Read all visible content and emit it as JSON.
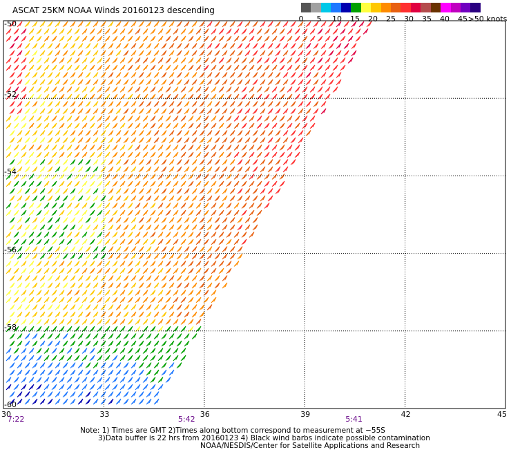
{
  "title": "ASCAT 25KM NOAA Winds 20160123 descending",
  "legend": {
    "labels": [
      "0",
      "5",
      "10",
      "15",
      "20",
      "25",
      "30",
      "35",
      "40",
      "45",
      ">50 knots"
    ],
    "colors": [
      "#555555",
      "#a0a0a0",
      "#00c8e8",
      "#1e78ff",
      "#0000b0",
      "#00a000",
      "#ffff40",
      "#ffc800",
      "#ff8c00",
      "#e86010",
      "#ff3030",
      "#e00040",
      "#b44c4c",
      "#6a3200",
      "#ff00ff",
      "#c000c0",
      "#7000c0",
      "#2a0080"
    ]
  },
  "axes": {
    "lon_labels": [
      "30",
      "33",
      "36",
      "39",
      "42",
      "45"
    ],
    "lat_labels": [
      "-50",
      "-52",
      "-54",
      "-56",
      "-58",
      "-60"
    ]
  },
  "times": [
    {
      "label": "7:22",
      "lon": 30.2
    },
    {
      "label": "5:42",
      "lon": 35.3
    },
    {
      "label": "5:41",
      "lon": 40.3
    }
  ],
  "notes": [
    "Note: 1) Times are GMT 2)Times along bottom correspond to measurement at −55S",
    "3)Data buffer is 22 hrs from 20160123 4) Black wind barbs indicate possible contamination",
    "NOAA/NESDIS/Center for Satellite Applications and Research"
  ]
}
